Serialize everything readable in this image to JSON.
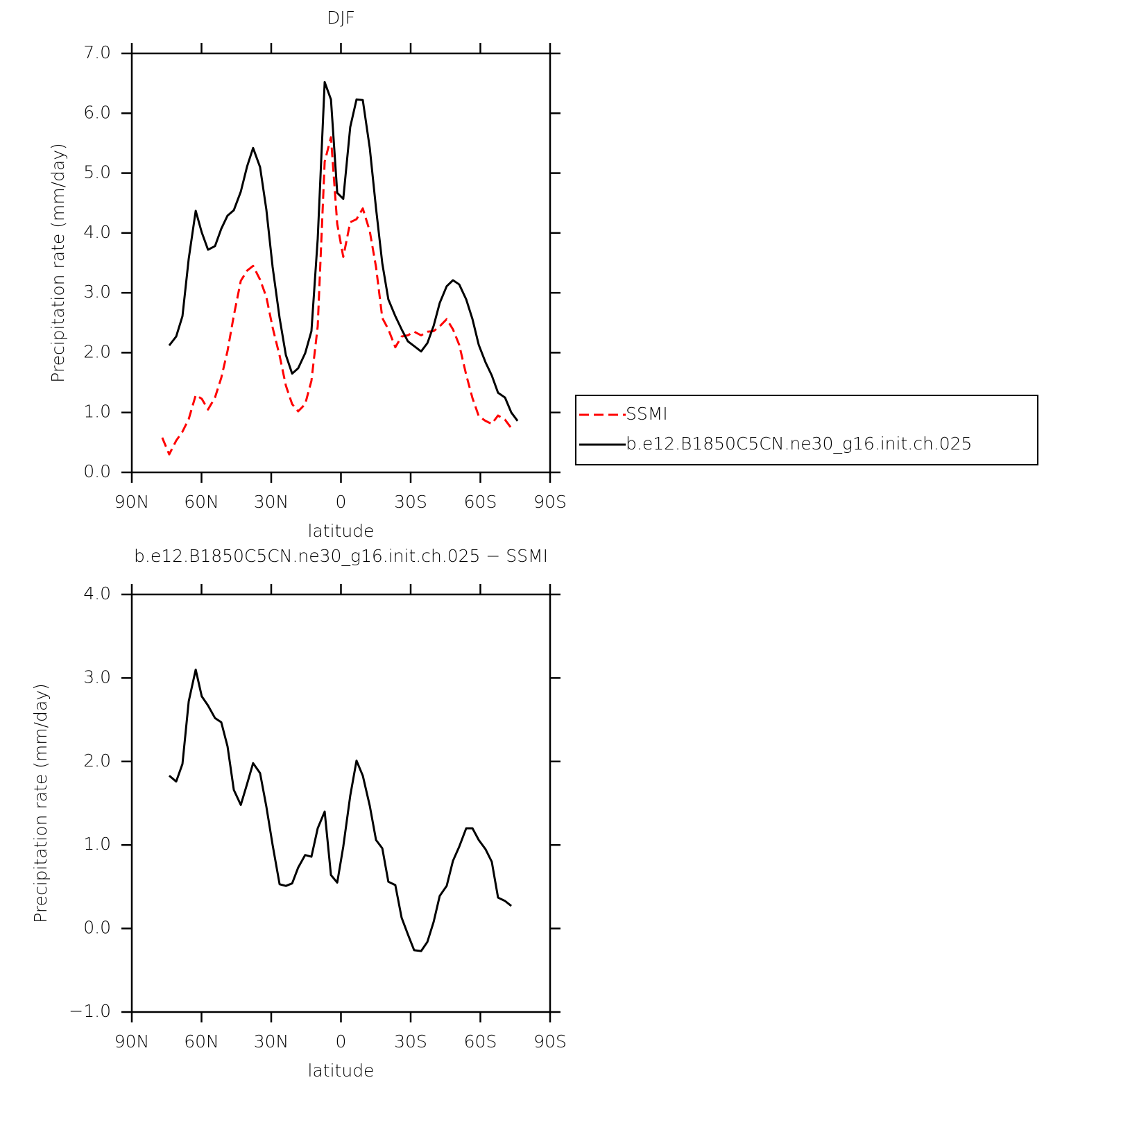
{
  "chart_data": [
    {
      "type": "line",
      "title": "DJF",
      "x_label": "latitude",
      "y_label": "Precipitation rate (mm/day)",
      "x": [
        76.9,
        73.9,
        70.9,
        68.2,
        65.5,
        62.5,
        59.9,
        57.2,
        54.2,
        51.5,
        48.8,
        46.1,
        43.1,
        40.4,
        37.8,
        34.8,
        32.1,
        29.4,
        26.4,
        23.7,
        21.0,
        18.4,
        15.4,
        12.7,
        10.0,
        7.0,
        4.3,
        1.6,
        -1.0,
        -4.0,
        -6.7,
        -9.4,
        -12.4,
        -15.1,
        -17.8,
        -20.4,
        -23.4,
        -26.1,
        -28.8,
        -31.5,
        -34.5,
        -37.2,
        -39.9,
        -42.5,
        -45.5,
        -48.2,
        -50.9,
        -53.9,
        -56.6,
        -59.3,
        -62.2,
        -64.9,
        -67.6,
        -70.6,
        -73.3,
        -76.0
      ],
      "series": [
        {
          "name": "SSMI",
          "color": "#ff0000",
          "line_style": "dashed",
          "values": [
            0.58,
            0.3,
            0.53,
            0.68,
            0.89,
            1.29,
            1.23,
            1.05,
            1.25,
            1.58,
            2.03,
            2.62,
            3.2,
            3.37,
            3.45,
            3.22,
            2.93,
            2.42,
            1.95,
            1.45,
            1.14,
            1.02,
            1.14,
            1.53,
            2.44,
            5.19,
            5.6,
            4.15,
            3.6,
            4.18,
            4.23,
            4.41,
            4.03,
            3.43,
            2.58,
            2.39,
            2.09,
            2.27,
            2.29,
            2.35,
            2.29,
            2.35,
            2.36,
            2.44,
            2.56,
            2.39,
            2.13,
            1.63,
            1.24,
            0.94,
            0.86,
            0.81,
            0.95,
            0.88,
            0.74,
            null
          ]
        },
        {
          "name": "b.e12.B1850C5CN.ne30_g16.init.ch.025",
          "color": "#000000",
          "line_style": "solid",
          "values": [
            null,
            2.12,
            2.27,
            2.61,
            3.57,
            4.37,
            4.01,
            3.72,
            3.78,
            4.07,
            4.29,
            4.38,
            4.69,
            5.11,
            5.42,
            5.1,
            4.39,
            3.43,
            2.58,
            1.96,
            1.65,
            1.74,
            1.99,
            2.36,
            3.9,
            6.52,
            6.23,
            4.67,
            4.57,
            5.77,
            6.23,
            6.22,
            5.42,
            4.41,
            3.49,
            2.89,
            2.61,
            2.39,
            2.19,
            2.11,
            2.02,
            2.16,
            2.45,
            2.83,
            3.11,
            3.21,
            3.14,
            2.89,
            2.56,
            2.13,
            1.84,
            1.62,
            1.33,
            1.25,
            1.0,
            0.86
          ]
        }
      ],
      "xlim": [
        90,
        -90
      ],
      "xticks": [
        {
          "value": 90,
          "label": "90N"
        },
        {
          "value": 60,
          "label": "60N"
        },
        {
          "value": 30,
          "label": "30N"
        },
        0,
        {
          "value": -30,
          "label": "30S"
        },
        {
          "value": -60,
          "label": "60S"
        },
        {
          "value": -90,
          "label": "90S"
        }
      ],
      "ylim": [
        0,
        7
      ],
      "yticks": [
        {
          "value": 0,
          "label": "0.0"
        },
        {
          "value": 1,
          "label": "1.0"
        },
        {
          "value": 2,
          "label": "2.0"
        },
        {
          "value": 3,
          "label": "3.0"
        },
        {
          "value": 4,
          "label": "4.0"
        },
        {
          "value": 5,
          "label": "5.0"
        },
        {
          "value": 6,
          "label": "6.0"
        },
        {
          "value": 7,
          "label": "7.0"
        }
      ],
      "grid": false,
      "legend": "right"
    },
    {
      "type": "line",
      "title": "b.e12.B1850C5CN.ne30_g16.init.ch.025 − SSMI",
      "x_label": "latitude",
      "y_label": "Precipitation rate (mm/day)",
      "x": [
        73.9,
        70.9,
        68.2,
        65.5,
        62.5,
        59.9,
        57.2,
        54.2,
        51.5,
        48.8,
        46.1,
        43.1,
        40.4,
        37.8,
        34.8,
        32.1,
        29.4,
        26.4,
        23.7,
        21.0,
        18.4,
        15.4,
        12.7,
        10.0,
        7.0,
        4.3,
        1.6,
        -1.0,
        -4.0,
        -6.7,
        -9.4,
        -12.4,
        -15.1,
        -17.8,
        -20.4,
        -23.4,
        -26.1,
        -28.8,
        -31.5,
        -34.5,
        -37.2,
        -39.9,
        -42.5,
        -45.5,
        -48.2,
        -50.9,
        -53.9,
        -56.6,
        -59.3,
        -62.2,
        -64.9,
        -67.6,
        -70.6,
        -73.3
      ],
      "series": [
        {
          "color": "#000000",
          "line_style": "solid",
          "values": [
            1.83,
            1.76,
            1.97,
            2.72,
            3.1,
            2.78,
            2.67,
            2.52,
            2.47,
            2.18,
            1.66,
            1.48,
            1.73,
            1.98,
            1.86,
            1.46,
            1.0,
            0.53,
            0.51,
            0.54,
            0.73,
            0.88,
            0.86,
            1.2,
            1.4,
            0.64,
            0.55,
            0.98,
            1.59,
            2.01,
            1.83,
            1.47,
            1.06,
            0.96,
            0.56,
            0.52,
            0.13,
            -0.07,
            -0.26,
            -0.27,
            -0.16,
            0.08,
            0.39,
            0.51,
            0.81,
            0.98,
            1.2,
            1.2,
            1.06,
            0.95,
            0.8,
            0.37,
            0.33,
            0.27
          ]
        }
      ],
      "xlim": [
        90,
        -90
      ],
      "xticks": [
        {
          "value": 90,
          "label": "90N"
        },
        {
          "value": 60,
          "label": "60N"
        },
        {
          "value": 30,
          "label": "30N"
        },
        0,
        {
          "value": -30,
          "label": "30S"
        },
        {
          "value": -60,
          "label": "60S"
        },
        {
          "value": -90,
          "label": "90S"
        }
      ],
      "ylim": [
        -1,
        4
      ],
      "yticks": [
        {
          "value": -1,
          "label": "−1.0"
        },
        {
          "value": 0,
          "label": "0.0"
        },
        {
          "value": 1,
          "label": "1.0"
        },
        {
          "value": 2,
          "label": "2.0"
        },
        {
          "value": 3,
          "label": "3.0"
        },
        {
          "value": 4,
          "label": "4.0"
        }
      ],
      "grid": false
    }
  ]
}
